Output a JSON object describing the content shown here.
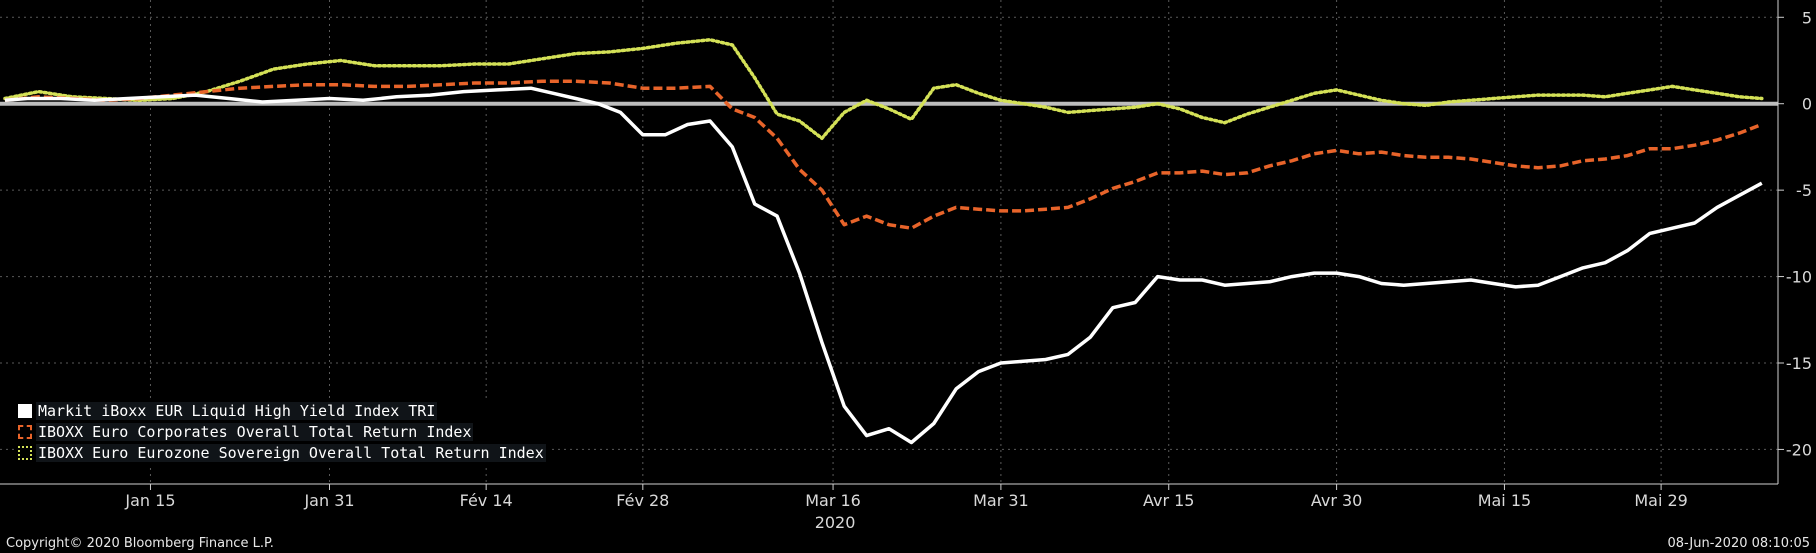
{
  "chart_data": {
    "type": "line",
    "title": "",
    "xlabel": "2020",
    "ylabel": "",
    "ylim": [
      -22,
      6
    ],
    "grid": true,
    "legend_position": "bottom-left",
    "x_tick_labels": [
      "Jan 15",
      "Jan 31",
      "Fév 14",
      "Fév 28",
      "Mar 16",
      "Mar 31",
      "Avr 15",
      "Avr 30",
      "Mai 15",
      "Mai 29"
    ],
    "x_tick_days": [
      14,
      30,
      44,
      58,
      75,
      90,
      105,
      120,
      135,
      149
    ],
    "y_ticks": [
      5,
      0,
      -5,
      -10,
      -15,
      -20
    ],
    "x_range_days": [
      1,
      159
    ],
    "series": [
      {
        "name": "Markit iBoxx EUR Liquid High Yield Index TRI",
        "color": "#ffffff",
        "dash": "solid",
        "swatch": "solid",
        "x": [
          1,
          3,
          6,
          9,
          12,
          15,
          18,
          21,
          24,
          27,
          30,
          33,
          36,
          39,
          42,
          45,
          48,
          50,
          52,
          54,
          56,
          58,
          60,
          62,
          64,
          66,
          68,
          70,
          72,
          74,
          76,
          78,
          80,
          82,
          84,
          86,
          88,
          90,
          92,
          94,
          96,
          98,
          100,
          102,
          104,
          106,
          108,
          110,
          112,
          114,
          116,
          118,
          120,
          122,
          124,
          126,
          128,
          130,
          132,
          134,
          136,
          138,
          140,
          142,
          144,
          146,
          148,
          150,
          152,
          154,
          156,
          158
        ],
        "y": [
          0.2,
          0.3,
          0.3,
          0.2,
          0.3,
          0.4,
          0.5,
          0.3,
          0.1,
          0.2,
          0.3,
          0.2,
          0.4,
          0.5,
          0.7,
          0.8,
          0.9,
          0.6,
          0.3,
          0.0,
          -0.5,
          -1.8,
          -1.8,
          -1.2,
          -1.0,
          -2.5,
          -5.8,
          -6.5,
          -9.8,
          -13.8,
          -17.5,
          -19.2,
          -18.8,
          -19.6,
          -18.5,
          -16.5,
          -15.5,
          -15.0,
          -14.9,
          -14.8,
          -14.5,
          -13.5,
          -11.8,
          -11.5,
          -10.0,
          -10.2,
          -10.2,
          -10.5,
          -10.4,
          -10.3,
          -10.0,
          -9.8,
          -9.8,
          -10.0,
          -10.4,
          -10.5,
          -10.4,
          -10.3,
          -10.2,
          -10.4,
          -10.6,
          -10.5,
          -10.0,
          -9.5,
          -9.2,
          -8.5,
          -7.5,
          -7.2,
          -6.9,
          -6.0,
          -5.3,
          -4.6
        ]
      },
      {
        "name": "IBOXX Euro Corporates Overall Total Return Index",
        "color": "#e8642a",
        "dash": "dashed",
        "swatch": "dashed",
        "x": [
          1,
          4,
          7,
          10,
          13,
          16,
          19,
          22,
          25,
          28,
          31,
          34,
          37,
          40,
          43,
          46,
          49,
          52,
          55,
          58,
          61,
          64,
          66,
          68,
          70,
          72,
          74,
          76,
          78,
          80,
          82,
          84,
          86,
          88,
          90,
          92,
          94,
          96,
          98,
          100,
          102,
          104,
          106,
          108,
          110,
          112,
          114,
          116,
          118,
          120,
          122,
          124,
          126,
          128,
          130,
          132,
          134,
          136,
          138,
          140,
          142,
          144,
          146,
          148,
          150,
          152,
          154,
          156,
          158
        ],
        "y": [
          0.2,
          0.4,
          0.3,
          0.2,
          0.3,
          0.5,
          0.7,
          0.9,
          1.0,
          1.1,
          1.1,
          1.0,
          1.0,
          1.1,
          1.2,
          1.2,
          1.3,
          1.3,
          1.2,
          0.9,
          0.9,
          1.0,
          -0.3,
          -0.8,
          -2.0,
          -3.8,
          -5.0,
          -7.0,
          -6.5,
          -7.0,
          -7.2,
          -6.5,
          -6.0,
          -6.1,
          -6.2,
          -6.2,
          -6.1,
          -6.0,
          -5.5,
          -4.9,
          -4.5,
          -4.0,
          -4.0,
          -3.9,
          -4.1,
          -4.0,
          -3.6,
          -3.3,
          -2.9,
          -2.7,
          -2.9,
          -2.8,
          -3.0,
          -3.1,
          -3.1,
          -3.2,
          -3.4,
          -3.6,
          -3.7,
          -3.6,
          -3.3,
          -3.2,
          -3.0,
          -2.6,
          -2.6,
          -2.4,
          -2.1,
          -1.7,
          -1.2
        ]
      },
      {
        "name": "IBOXX Euro Eurozone Sovereign Overall Total Return Index",
        "color": "#d4e157",
        "dash": "dotted",
        "swatch": "dotted",
        "x": [
          1,
          4,
          7,
          10,
          13,
          16,
          19,
          22,
          25,
          28,
          31,
          34,
          37,
          40,
          43,
          46,
          49,
          52,
          55,
          58,
          61,
          64,
          66,
          68,
          70,
          72,
          74,
          76,
          78,
          80,
          82,
          84,
          86,
          88,
          90,
          92,
          94,
          96,
          98,
          100,
          102,
          104,
          106,
          108,
          110,
          112,
          114,
          116,
          118,
          120,
          122,
          124,
          126,
          128,
          130,
          132,
          134,
          136,
          138,
          140,
          142,
          144,
          146,
          148,
          150,
          152,
          154,
          156,
          158
        ],
        "y": [
          0.3,
          0.7,
          0.4,
          0.3,
          0.2,
          0.3,
          0.7,
          1.3,
          2.0,
          2.3,
          2.5,
          2.2,
          2.2,
          2.2,
          2.3,
          2.3,
          2.6,
          2.9,
          3.0,
          3.2,
          3.5,
          3.7,
          3.4,
          1.5,
          -0.6,
          -1.0,
          -2.0,
          -0.5,
          0.2,
          -0.3,
          -0.9,
          0.9,
          1.1,
          0.6,
          0.2,
          0.0,
          -0.2,
          -0.5,
          -0.4,
          -0.3,
          -0.2,
          0.0,
          -0.3,
          -0.8,
          -1.1,
          -0.6,
          -0.2,
          0.2,
          0.6,
          0.8,
          0.5,
          0.2,
          0.0,
          -0.1,
          0.1,
          0.2,
          0.3,
          0.4,
          0.5,
          0.5,
          0.5,
          0.4,
          0.6,
          0.8,
          1.0,
          0.8,
          0.6,
          0.4,
          0.3
        ]
      }
    ]
  },
  "footer": {
    "copyright": "Copyright© 2020 Bloomberg Finance L.P.",
    "timestamp": "08-Jun-2020 08:10:05"
  }
}
